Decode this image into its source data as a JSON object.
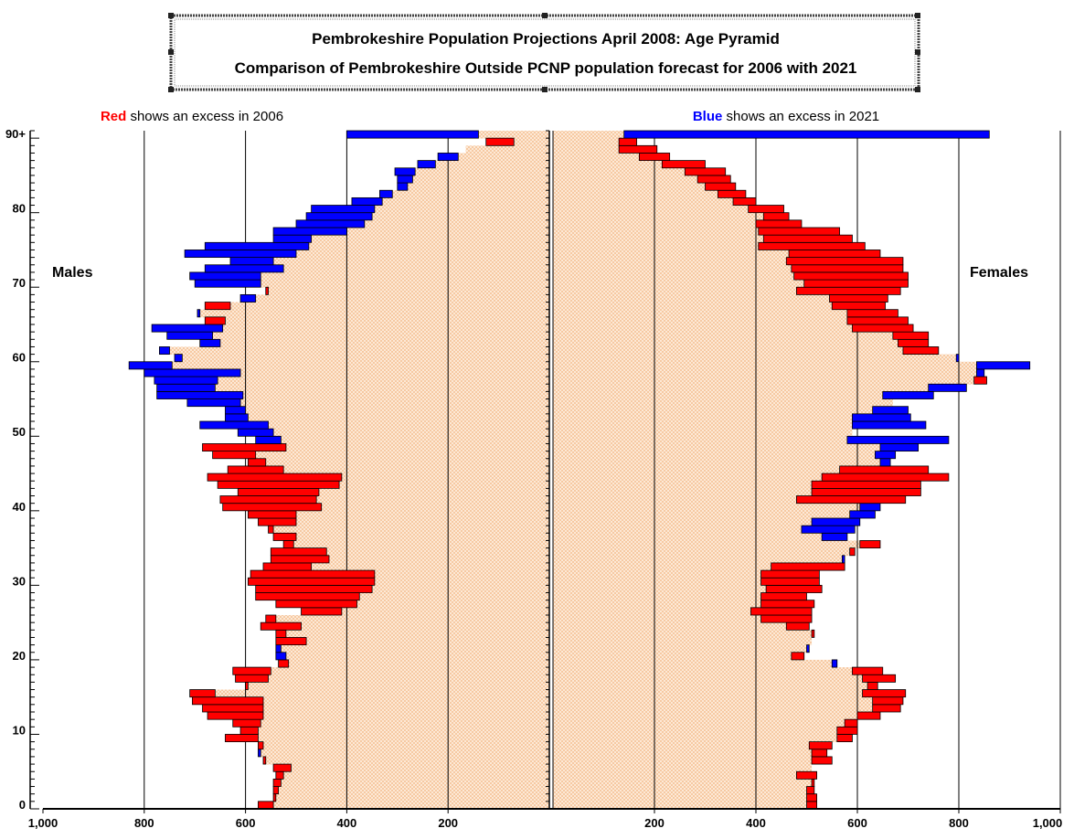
{
  "chart_data": {
    "type": "bar",
    "orientation": "horizontal-pyramid",
    "title_lines": [
      "Pembrokeshire Population Projections April 2008: Age Pyramid",
      "Comparison of Pembrokeshire Outside PCNP population forecast for 2006 with 2021"
    ],
    "notes": {
      "left_color_word": "Red",
      "left_rest": " shows an excess in 2006",
      "right_color_word": "Blue",
      "right_rest": " shows an excess in 2021"
    },
    "left_label": "Males",
    "right_label": "Females",
    "xlim": [
      0,
      1000
    ],
    "x_ticks": [
      200,
      400,
      600,
      800,
      1000
    ],
    "x_tick_labels_left": [
      "1,000",
      "800",
      "600",
      "400",
      "200"
    ],
    "x_tick_labels_right": [
      "200",
      "400",
      "600",
      "800",
      "1,000"
    ],
    "y_tick_labels": [
      {
        "age": 0,
        "label": "0"
      },
      {
        "age": 10,
        "label": "10"
      },
      {
        "age": 20,
        "label": "20"
      },
      {
        "age": 30,
        "label": "30"
      },
      {
        "age": 40,
        "label": "40"
      },
      {
        "age": 50,
        "label": "50"
      },
      {
        "age": 60,
        "label": "60"
      },
      {
        "age": 70,
        "label": "70"
      },
      {
        "age": 80,
        "label": "80"
      },
      {
        "age": 90,
        "label": "90+"
      }
    ],
    "colors": {
      "excess_2006": "#ff0000",
      "excess_2021": "#0000ff",
      "common": "#fbe3cc",
      "grid": "#000000"
    },
    "ages": [
      0,
      1,
      2,
      3,
      4,
      5,
      6,
      7,
      8,
      9,
      10,
      11,
      12,
      13,
      14,
      15,
      16,
      17,
      18,
      19,
      20,
      21,
      22,
      23,
      24,
      25,
      26,
      27,
      28,
      29,
      30,
      31,
      32,
      33,
      34,
      35,
      36,
      37,
      38,
      39,
      40,
      41,
      42,
      43,
      44,
      45,
      46,
      47,
      48,
      49,
      50,
      51,
      52,
      53,
      54,
      55,
      56,
      57,
      58,
      59,
      60,
      61,
      62,
      63,
      64,
      65,
      66,
      67,
      68,
      69,
      70,
      71,
      72,
      73,
      74,
      75,
      76,
      77,
      78,
      79,
      80,
      81,
      82,
      83,
      84,
      85,
      86,
      87,
      88,
      89,
      90
    ],
    "series": [
      {
        "name": "Males 2006",
        "values": [
          575,
          545,
          545,
          545,
          540,
          545,
          565,
          570,
          575,
          640,
          610,
          625,
          675,
          685,
          705,
          710,
          600,
          620,
          625,
          535,
          520,
          530,
          540,
          540,
          570,
          560,
          490,
          540,
          580,
          580,
          595,
          590,
          565,
          550,
          550,
          525,
          545,
          555,
          575,
          595,
          645,
          650,
          615,
          655,
          675,
          635,
          595,
          665,
          685,
          530,
          545,
          555,
          595,
          600,
          610,
          605,
          660,
          655,
          610,
          745,
          725,
          750,
          650,
          665,
          645,
          680,
          690,
          680,
          580,
          560,
          570,
          570,
          525,
          545,
          500,
          475,
          470,
          400,
          365,
          350,
          345,
          330,
          310,
          280,
          270,
          265,
          225,
          180,
          165,
          125,
          140
        ]
      },
      {
        "name": "Males 2021",
        "values": [
          545,
          540,
          535,
          530,
          525,
          510,
          560,
          575,
          565,
          575,
          575,
          570,
          565,
          565,
          565,
          660,
          595,
          555,
          550,
          515,
          540,
          540,
          480,
          520,
          490,
          540,
          410,
          380,
          375,
          350,
          345,
          345,
          470,
          435,
          440,
          505,
          500,
          545,
          500,
          500,
          450,
          460,
          455,
          415,
          410,
          525,
          560,
          580,
          520,
          580,
          615,
          690,
          640,
          640,
          715,
          775,
          775,
          780,
          800,
          830,
          740,
          770,
          690,
          755,
          785,
          640,
          695,
          630,
          610,
          555,
          700,
          710,
          680,
          630,
          720,
          680,
          545,
          545,
          500,
          480,
          470,
          390,
          335,
          300,
          300,
          305,
          260,
          220,
          165,
          70,
          400
        ]
      },
      {
        "name": "Females 2006",
        "values": [
          520,
          520,
          515,
          515,
          520,
          510,
          550,
          540,
          550,
          590,
          600,
          600,
          645,
          685,
          690,
          695,
          640,
          675,
          650,
          550,
          495,
          500,
          510,
          515,
          505,
          510,
          510,
          515,
          500,
          530,
          525,
          525,
          575,
          570,
          595,
          645,
          530,
          490,
          510,
          585,
          605,
          695,
          725,
          725,
          780,
          740,
          645,
          635,
          645,
          580,
          590,
          590,
          590,
          630,
          670,
          650,
          740,
          855,
          835,
          835,
          795,
          760,
          740,
          740,
          710,
          700,
          680,
          655,
          660,
          685,
          700,
          700,
          690,
          690,
          645,
          615,
          590,
          565,
          490,
          465,
          455,
          400,
          380,
          360,
          350,
          340,
          300,
          230,
          205,
          165,
          140
        ]
      },
      {
        "name": "Females 2021",
        "values": [
          500,
          500,
          500,
          510,
          480,
          510,
          510,
          510,
          505,
          560,
          560,
          575,
          600,
          630,
          630,
          610,
          620,
          610,
          590,
          560,
          470,
          505,
          510,
          510,
          460,
          410,
          390,
          410,
          410,
          420,
          410,
          410,
          430,
          575,
          585,
          605,
          580,
          595,
          605,
          635,
          645,
          480,
          510,
          510,
          530,
          565,
          665,
          675,
          720,
          780,
          590,
          735,
          705,
          700,
          670,
          750,
          815,
          830,
          850,
          940,
          800,
          690,
          680,
          670,
          590,
          580,
          580,
          550,
          545,
          480,
          495,
          475,
          470,
          460,
          465,
          405,
          415,
          405,
          400,
          415,
          385,
          355,
          325,
          300,
          285,
          260,
          215,
          170,
          130,
          130,
          860
        ]
      }
    ]
  }
}
